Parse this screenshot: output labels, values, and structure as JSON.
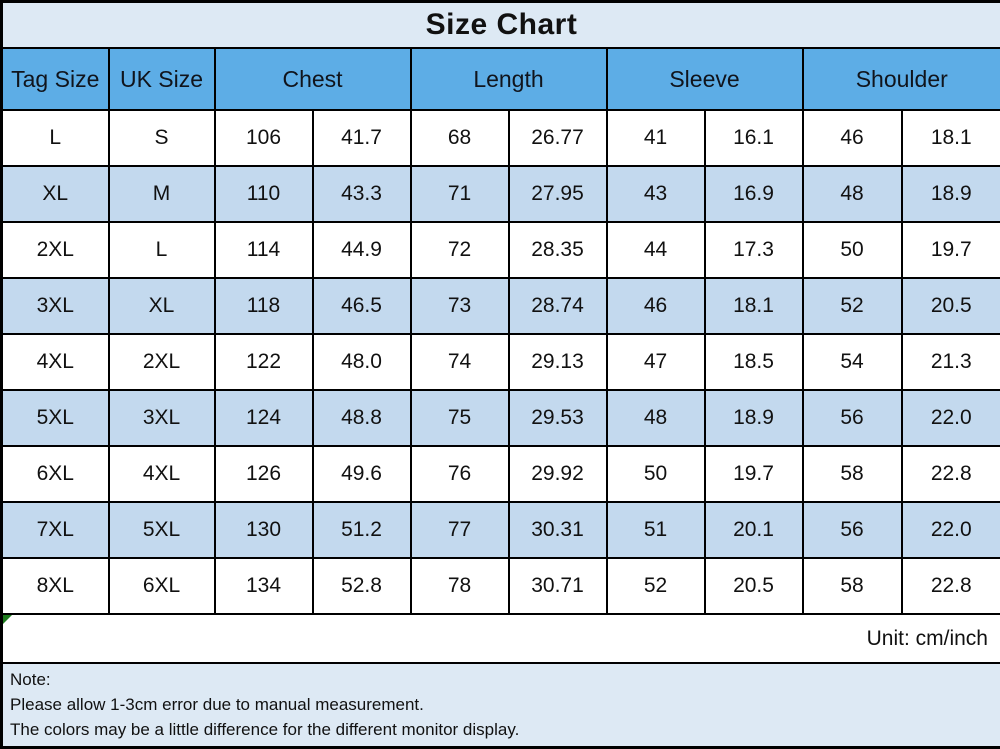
{
  "title": "Size Chart",
  "unit_label": "Unit: cm/inch",
  "note": {
    "line1": "Note:",
    "line2": "Please allow 1-3cm error due to manual measurement.",
    "line3": "The colors may be a little difference for the different monitor display."
  },
  "colors": {
    "header_bg": "#5dade6",
    "stripe_bg": "#c3d9ee",
    "panel_bg": "#dde9f4",
    "marker_green": "#1e7b1e",
    "border": "#000000"
  },
  "chart_data": {
    "type": "table",
    "title": "Size Chart",
    "unit": "cm/inch",
    "column_groups": [
      "Tag Size",
      "UK Size",
      "Chest",
      "Length",
      "Sleeve",
      "Shoulder"
    ],
    "columns_note": "Chest, Length, Sleeve and Shoulder each have two sub-columns: value in cm and value in inch",
    "rows": [
      [
        "L",
        "S",
        "106",
        "41.7",
        "68",
        "26.77",
        "41",
        "16.1",
        "46",
        "18.1"
      ],
      [
        "XL",
        "M",
        "110",
        "43.3",
        "71",
        "27.95",
        "43",
        "16.9",
        "48",
        "18.9"
      ],
      [
        "2XL",
        "L",
        "114",
        "44.9",
        "72",
        "28.35",
        "44",
        "17.3",
        "50",
        "19.7"
      ],
      [
        "3XL",
        "XL",
        "118",
        "46.5",
        "73",
        "28.74",
        "46",
        "18.1",
        "52",
        "20.5"
      ],
      [
        "4XL",
        "2XL",
        "122",
        "48.0",
        "74",
        "29.13",
        "47",
        "18.5",
        "54",
        "21.3"
      ],
      [
        "5XL",
        "3XL",
        "124",
        "48.8",
        "75",
        "29.53",
        "48",
        "18.9",
        "56",
        "22.0"
      ],
      [
        "6XL",
        "4XL",
        "126",
        "49.6",
        "76",
        "29.92",
        "50",
        "19.7",
        "58",
        "22.8"
      ],
      [
        "7XL",
        "5XL",
        "130",
        "51.2",
        "77",
        "30.31",
        "51",
        "20.1",
        "56",
        "22.0"
      ],
      [
        "8XL",
        "6XL",
        "134",
        "52.8",
        "78",
        "30.71",
        "52",
        "20.5",
        "58",
        "22.8"
      ]
    ]
  }
}
